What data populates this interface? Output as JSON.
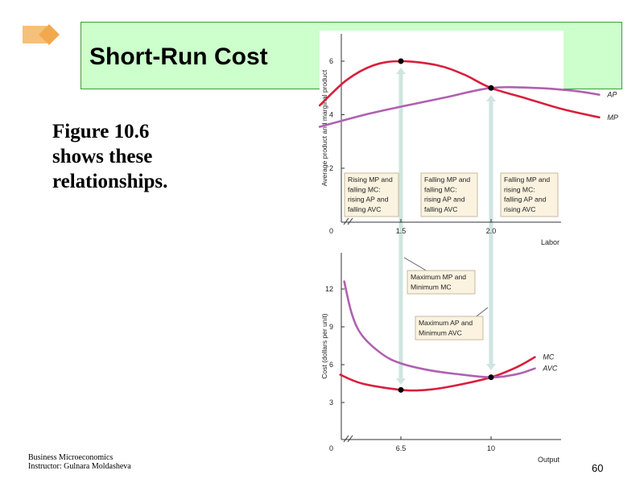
{
  "slide": {
    "title": "Short-Run Cost",
    "body_lines": [
      "Figure 10.6",
      "shows these",
      "relationships."
    ],
    "footer_lines": [
      "Business Microeconomics",
      "Instructor: Gulnara Moldasheva"
    ],
    "page_number": "60",
    "colors": {
      "title_bg": "#ccffcc",
      "title_border": "#3aa03a",
      "bullet": "#f5c17a"
    }
  },
  "chart_data": [
    {
      "type": "line",
      "ylabel": "Average product and marginal product",
      "xlabel": "Labor",
      "origin_label": "0",
      "y_ticks": [
        2,
        4,
        6
      ],
      "x_ticks": [
        1.5,
        2.0
      ],
      "x_tick_labels": [
        "1.5",
        "2.0"
      ],
      "xlim": [
        1.0,
        2.75
      ],
      "ylim": [
        0,
        7.0
      ],
      "series": [
        {
          "name": "AP",
          "color": "#b060b0",
          "x": [
            1.05,
            1.3,
            1.5,
            1.75,
            2.0,
            2.25,
            2.45,
            2.6
          ],
          "y": [
            3.55,
            4.0,
            4.3,
            4.65,
            5.0,
            5.0,
            4.9,
            4.75
          ]
        },
        {
          "name": "MP",
          "color": "#d81f3d",
          "x": [
            1.05,
            1.2,
            1.35,
            1.5,
            1.7,
            1.85,
            2.0,
            2.2,
            2.4,
            2.6
          ],
          "y": [
            4.35,
            5.3,
            5.85,
            6.0,
            5.85,
            5.5,
            5.0,
            4.6,
            4.2,
            3.9
          ]
        }
      ],
      "points": [
        {
          "x": 1.5,
          "y": 6.0
        },
        {
          "x": 2.0,
          "y": 5.0
        }
      ],
      "annotations": [
        {
          "lines": [
            "Rising MP and",
            "falling MC:",
            "rising AP and",
            "falling AVC"
          ]
        },
        {
          "lines": [
            "Falling MP and",
            "falling MC:",
            "rising AP and",
            "falling AVC"
          ]
        },
        {
          "lines": [
            "Falling MP and",
            "rising MC:",
            "falling AP and",
            "rising AVC"
          ]
        }
      ]
    },
    {
      "type": "line",
      "ylabel": "Cost (dollars per unit)",
      "xlabel": "Output",
      "origin_label": "0",
      "y_ticks": [
        3,
        6,
        9,
        12
      ],
      "x_ticks": [
        6.5,
        10
      ],
      "x_tick_labels": [
        "6.5",
        "10"
      ],
      "xlim": [
        4.0,
        12.0
      ],
      "ylim": [
        0,
        15.0
      ],
      "series": [
        {
          "name": "MC",
          "color": "#d81f3d",
          "x": [
            4.15,
            5.0,
            6.5,
            7.5,
            8.5,
            10.0,
            11.0,
            11.7
          ],
          "y": [
            5.2,
            4.5,
            4.0,
            4.0,
            4.3,
            5.0,
            5.8,
            6.6
          ]
        },
        {
          "name": "AVC",
          "color": "#b060b0",
          "x": [
            4.3,
            4.6,
            5.0,
            5.8,
            6.5,
            7.5,
            8.5,
            10.0,
            11.0,
            11.7
          ],
          "y": [
            12.6,
            10.0,
            8.3,
            6.8,
            6.1,
            5.6,
            5.3,
            5.0,
            5.25,
            5.7
          ]
        }
      ],
      "points": [
        {
          "x": 6.5,
          "y": 4.0
        },
        {
          "x": 10.0,
          "y": 5.0
        }
      ],
      "annotations": [
        {
          "lines": [
            "Maximum MP and",
            "Minimum MC"
          ]
        },
        {
          "lines": [
            "Maximum AP and",
            "Minimum AVC"
          ]
        }
      ]
    }
  ]
}
